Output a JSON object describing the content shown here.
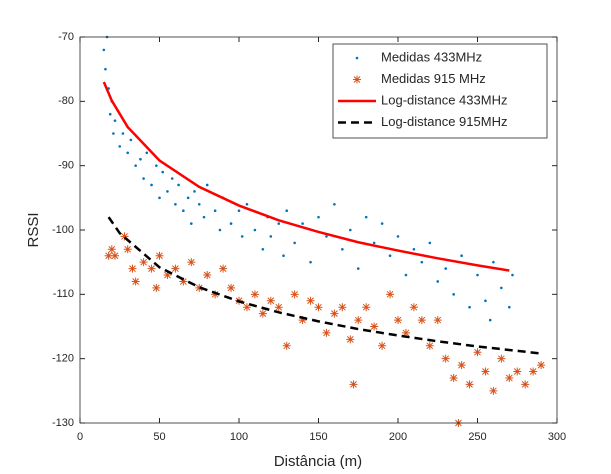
{
  "chart_data": {
    "type": "scatter",
    "xlabel": "Distância (m)",
    "ylabel": "RSSI",
    "xlim": [
      0,
      300
    ],
    "xticks": [
      0,
      50,
      100,
      150,
      200,
      250,
      300
    ],
    "ylim": [
      -130,
      -70
    ],
    "yticks": [
      -130,
      -120,
      -110,
      -100,
      -90,
      -80,
      -70
    ],
    "legend": "upper right",
    "series": [
      {
        "name": "Medidas 433MHz",
        "color": "#0072bd",
        "mark": "dot",
        "x": [
          15,
          16,
          17,
          18,
          19,
          20,
          21,
          22,
          25,
          27,
          30,
          32,
          35,
          38,
          40,
          42,
          45,
          48,
          50,
          52,
          55,
          58,
          60,
          62,
          65,
          68,
          70,
          72,
          75,
          78,
          80,
          85,
          88,
          90,
          95,
          100,
          102,
          105,
          110,
          115,
          118,
          120,
          125,
          128,
          130,
          135,
          140,
          145,
          150,
          155,
          160,
          165,
          170,
          175,
          180,
          185,
          190,
          195,
          200,
          205,
          210,
          215,
          220,
          225,
          230,
          235,
          240,
          245,
          250,
          255,
          258,
          260,
          265,
          270,
          272
        ],
        "values": [
          -72,
          -75,
          -70,
          -78,
          -82,
          -80,
          -85,
          -83,
          -87,
          -85,
          -88,
          -86,
          -90,
          -89,
          -92,
          -88,
          -93,
          -90,
          -95,
          -91,
          -94,
          -92,
          -96,
          -93,
          -97,
          -95,
          -99,
          -94,
          -96,
          -98,
          -93,
          -97,
          -100,
          -95,
          -99,
          -97,
          -101,
          -96,
          -100,
          -103,
          -98,
          -101,
          -99,
          -104,
          -97,
          -102,
          -99,
          -105,
          -98,
          -101,
          -96,
          -103,
          -100,
          -106,
          -98,
          -102,
          -99,
          -104,
          -101,
          -107,
          -103,
          -105,
          -102,
          -108,
          -106,
          -110,
          -104,
          -112,
          -107,
          -111,
          -114,
          -105,
          -109,
          -112,
          -107
        ]
      },
      {
        "name": "Medidas 915 MHz",
        "color": "#d95319",
        "mark": "asterisk",
        "x": [
          18,
          20,
          22,
          28,
          30,
          33,
          35,
          40,
          45,
          48,
          50,
          55,
          60,
          65,
          70,
          75,
          80,
          85,
          90,
          95,
          100,
          105,
          110,
          115,
          120,
          125,
          130,
          135,
          140,
          145,
          150,
          155,
          160,
          165,
          170,
          172,
          175,
          180,
          185,
          190,
          195,
          200,
          205,
          210,
          215,
          220,
          225,
          230,
          235,
          238,
          240,
          245,
          250,
          255,
          260,
          265,
          270,
          275,
          280,
          285,
          290
        ],
        "values": [
          -104,
          -103,
          -104,
          -101,
          -103,
          -106,
          -108,
          -105,
          -106,
          -109,
          -104,
          -107,
          -106,
          -108,
          -105,
          -109,
          -107,
          -110,
          -106,
          -109,
          -111,
          -112,
          -110,
          -113,
          -111,
          -112,
          -118,
          -110,
          -114,
          -111,
          -112,
          -116,
          -113,
          -112,
          -117,
          -124,
          -114,
          -112,
          -115,
          -118,
          -110,
          -114,
          -116,
          -112,
          -114,
          -118,
          -114,
          -120,
          -123,
          -130,
          -121,
          -124,
          -119,
          -122,
          -125,
          -120,
          -123,
          -122,
          -124,
          -122,
          -121
        ]
      },
      {
        "name": "Log-distance 433MHz",
        "color": "#ff0000",
        "mark": "solid",
        "x": [
          15,
          20,
          30,
          50,
          75,
          100,
          125,
          150,
          175,
          200,
          225,
          250,
          270
        ],
        "values": [
          -77,
          -79.9,
          -84,
          -89.2,
          -93.3,
          -96.2,
          -98.5,
          -100.3,
          -101.9,
          -103.2,
          -104.4,
          -105.5,
          -106.3
        ]
      },
      {
        "name": "Log-distance 915MHz",
        "color": "#000000",
        "mark": "dashed",
        "x": [
          18,
          25,
          50,
          75,
          100,
          125,
          150,
          175,
          200,
          225,
          250,
          290
        ],
        "values": [
          -98,
          -100.5,
          -105.8,
          -108.9,
          -111.1,
          -112.8,
          -114.2,
          -115.4,
          -116.4,
          -117.3,
          -118.1,
          -119.2
        ]
      }
    ]
  }
}
